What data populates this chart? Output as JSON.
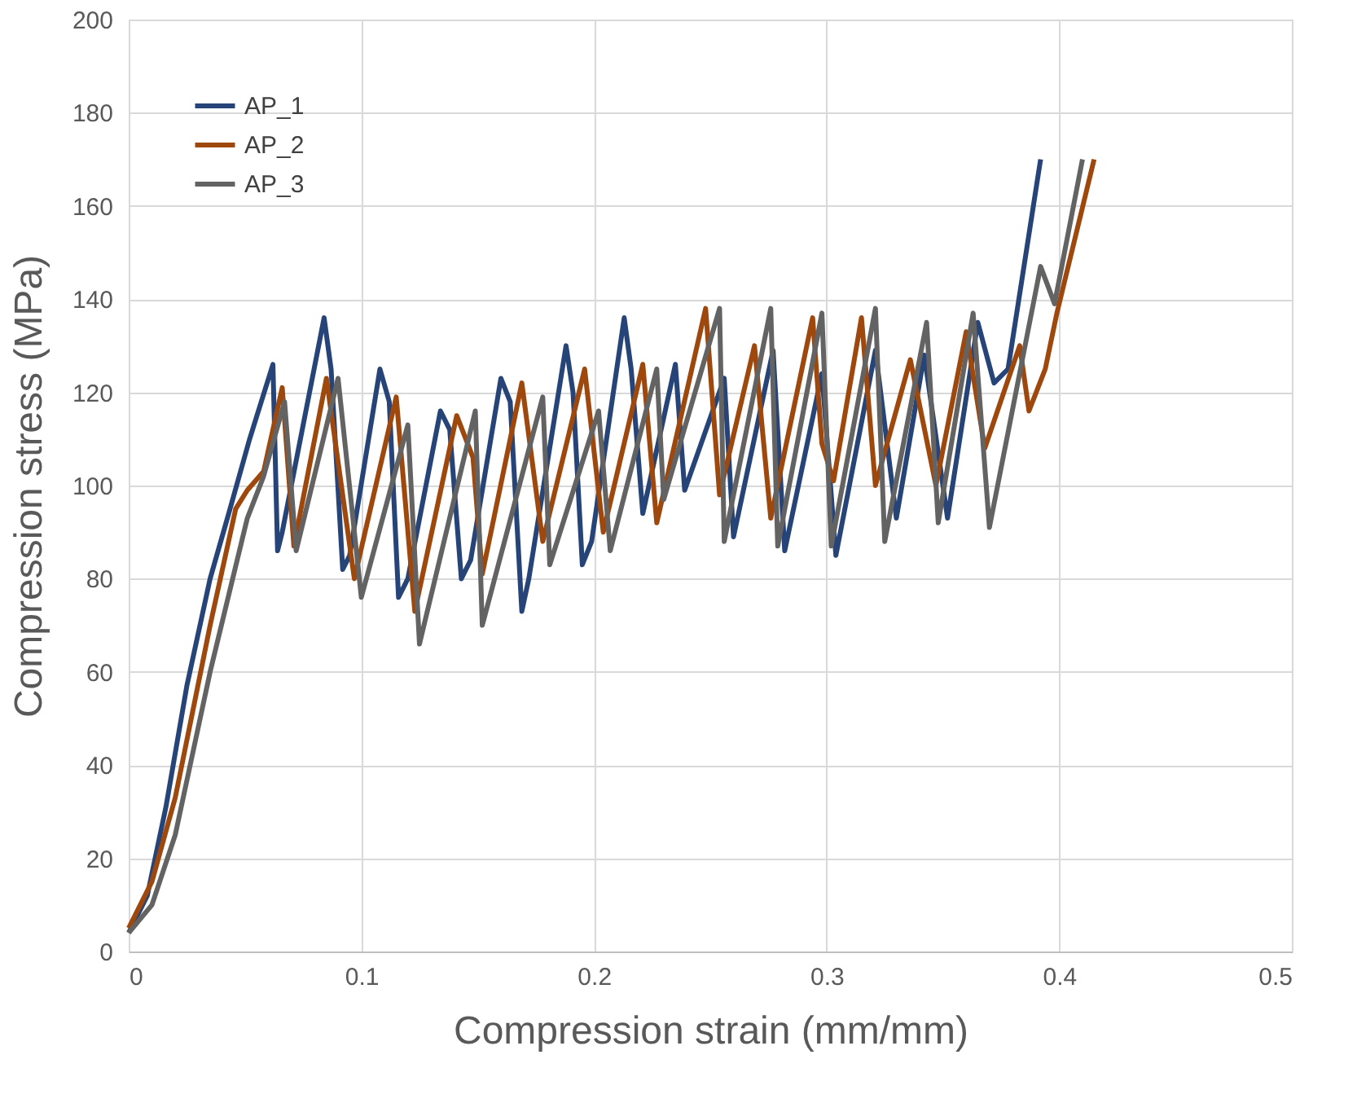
{
  "chart_data": {
    "type": "line",
    "xlabel": "Compression strain (mm/mm)",
    "ylabel": "Compression stress (MPa)",
    "xlim": [
      0,
      0.5
    ],
    "xticks": [
      0,
      0.1,
      0.2,
      0.3,
      0.4,
      0.5
    ],
    "ylim": [
      0,
      200
    ],
    "yticks": [
      0,
      20,
      40,
      60,
      80,
      100,
      120,
      140,
      160,
      180,
      200
    ],
    "grid": true,
    "legend": "top left",
    "marker": "none",
    "line_style": "solid",
    "series": [
      {
        "name": "AP_1",
        "color": "#264478",
        "x": [
          0,
          0.008,
          0.016,
          0.025,
          0.035,
          0.043,
          0.052,
          0.062,
          0.064,
          0.066,
          0.084,
          0.087,
          0.092,
          0.095,
          0.108,
          0.112,
          0.116,
          0.12,
          0.134,
          0.138,
          0.143,
          0.147,
          0.16,
          0.164,
          0.169,
          0.172,
          0.188,
          0.191,
          0.195,
          0.199,
          0.213,
          0.216,
          0.221,
          0.235,
          0.239,
          0.256,
          0.26,
          0.277,
          0.282,
          0.298,
          0.304,
          0.321,
          0.33,
          0.342,
          0.352,
          0.365,
          0.372,
          0.378,
          0.392
        ],
        "values": [
          4,
          12,
          31,
          57,
          80,
          94,
          110,
          126,
          86,
          90,
          136,
          125,
          82,
          85,
          125,
          118,
          76,
          80,
          116,
          112,
          80,
          84,
          123,
          118,
          73,
          80,
          130,
          120,
          83,
          88,
          136,
          125,
          94,
          126,
          99,
          123,
          89,
          129,
          86,
          124,
          85,
          129,
          93,
          128,
          93,
          135,
          122,
          125,
          170
        ]
      },
      {
        "name": "AP_2",
        "color": "#9e480e",
        "x": [
          0,
          0.01,
          0.02,
          0.035,
          0.046,
          0.051,
          0.058,
          0.066,
          0.071,
          0.085,
          0.097,
          0.115,
          0.123,
          0.141,
          0.148,
          0.152,
          0.169,
          0.178,
          0.196,
          0.204,
          0.221,
          0.227,
          0.248,
          0.254,
          0.269,
          0.276,
          0.294,
          0.298,
          0.303,
          0.315,
          0.321,
          0.336,
          0.347,
          0.36,
          0.368,
          0.383,
          0.387,
          0.394,
          0.399,
          0.415
        ],
        "values": [
          5,
          15,
          33,
          70,
          95,
          99,
          103,
          121,
          87,
          123,
          80,
          119,
          73,
          115,
          106,
          81,
          122,
          88,
          125,
          90,
          126,
          92,
          138,
          98,
          130,
          93,
          136,
          109,
          101,
          136,
          100,
          127,
          100,
          133,
          108,
          130,
          116,
          125,
          137,
          170
        ]
      },
      {
        "name": "AP_3",
        "color": "#636363",
        "x": [
          0,
          0.01,
          0.02,
          0.035,
          0.051,
          0.058,
          0.067,
          0.072,
          0.09,
          0.1,
          0.12,
          0.125,
          0.149,
          0.152,
          0.178,
          0.181,
          0.202,
          0.207,
          0.227,
          0.23,
          0.254,
          0.256,
          0.276,
          0.279,
          0.298,
          0.302,
          0.321,
          0.325,
          0.343,
          0.348,
          0.363,
          0.37,
          0.392,
          0.398,
          0.41
        ],
        "values": [
          4,
          10,
          25,
          60,
          93,
          102,
          118,
          86,
          123,
          76,
          113,
          66,
          116,
          70,
          119,
          83,
          116,
          86,
          125,
          97,
          138,
          88,
          138,
          87,
          137,
          87,
          138,
          88,
          135,
          92,
          137,
          91,
          147,
          139,
          170
        ]
      }
    ]
  }
}
